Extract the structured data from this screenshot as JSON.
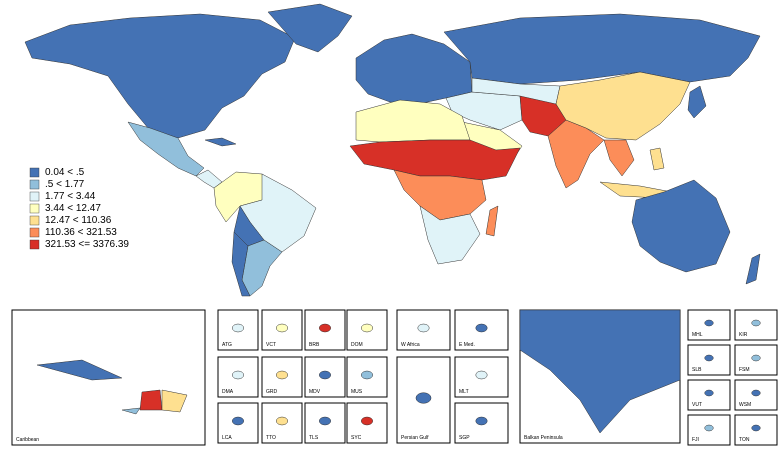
{
  "legend": {
    "items": [
      {
        "label": "0.04 < .5",
        "color": "#4472b4"
      },
      {
        "label": ".5 < 1.77",
        "color": "#91bfdb"
      },
      {
        "label": "1.77 < 3.44",
        "color": "#e0f3f8"
      },
      {
        "label": "3.44 < 12.47",
        "color": "#ffffbf"
      },
      {
        "label": "12.47 < 110.36",
        "color": "#fee090"
      },
      {
        "label": "110.36 < 321.53",
        "color": "#fc8d59"
      },
      {
        "label": "321.53 <= 3376.39",
        "color": "#d73027"
      }
    ]
  },
  "insets": [
    {
      "label": "Caribbean"
    },
    {
      "label": "ATG"
    },
    {
      "label": "VCT"
    },
    {
      "label": "BRB"
    },
    {
      "label": "DOM"
    },
    {
      "label": "DMA"
    },
    {
      "label": "GRD"
    },
    {
      "label": "MDV"
    },
    {
      "label": "MUS"
    },
    {
      "label": "LCA"
    },
    {
      "label": "TTO"
    },
    {
      "label": "TLS"
    },
    {
      "label": "SYC"
    },
    {
      "label": "W Africa"
    },
    {
      "label": "E Med."
    },
    {
      "label": "MLT"
    },
    {
      "label": "Persian Gulf"
    },
    {
      "label": "SGP"
    },
    {
      "label": "Balkan Peninsula"
    },
    {
      "label": "MHL"
    },
    {
      "label": "KIR"
    },
    {
      "label": "SLB"
    },
    {
      "label": "FSM"
    },
    {
      "label": "VUT"
    },
    {
      "label": "WSM"
    },
    {
      "label": "FJI"
    },
    {
      "label": "TON"
    }
  ]
}
